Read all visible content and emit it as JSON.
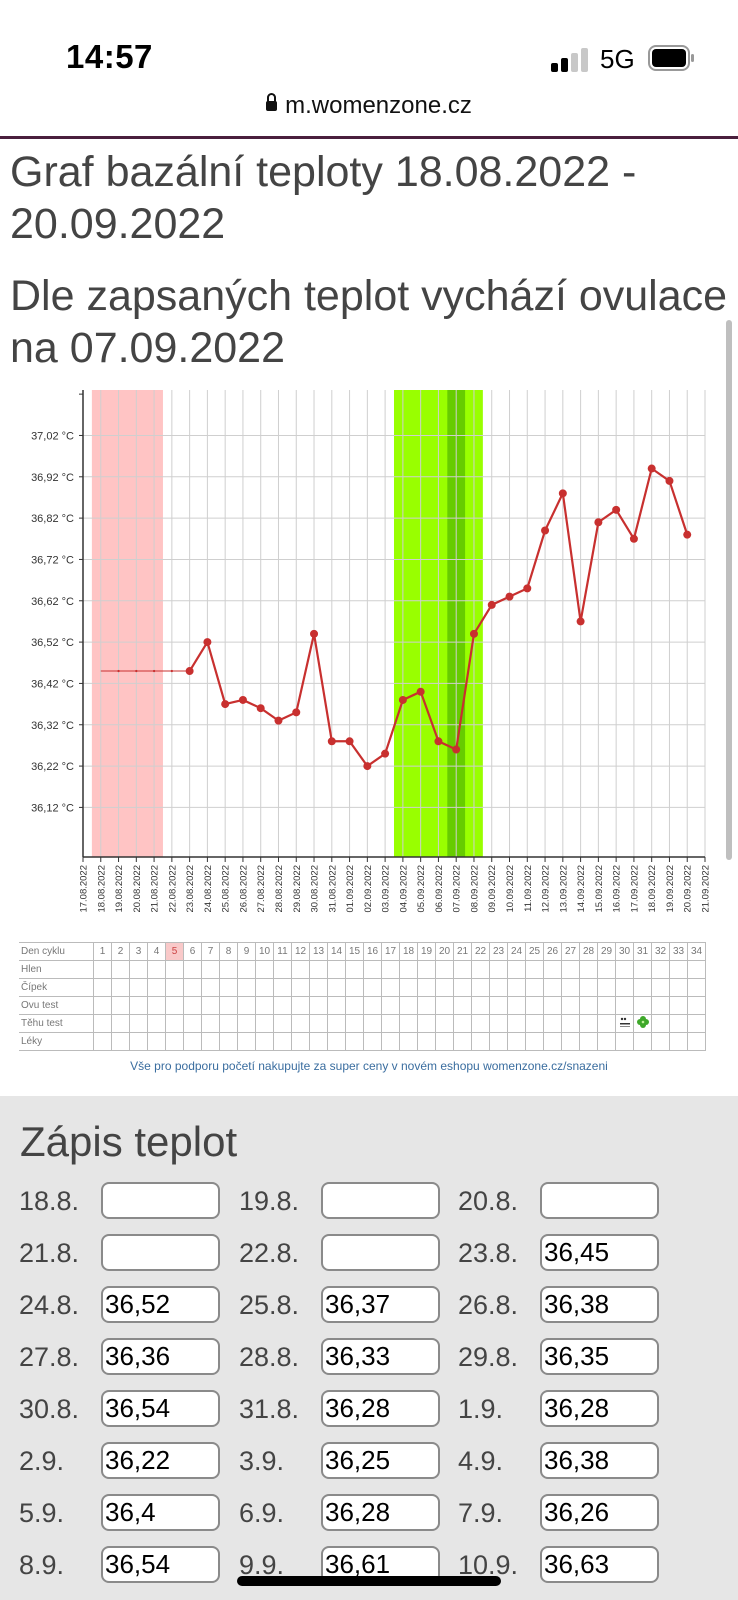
{
  "status": {
    "time": "14:57",
    "network": "5G"
  },
  "browser": {
    "url": "m.womenzone.cz"
  },
  "page": {
    "title": "Graf bazální teploty 18.08.2022 - 20.09.2022",
    "ovulation_text": "Dle zapsaných teplot vychází ovulace na 07.09.2022"
  },
  "chart_data": {
    "type": "line",
    "x": [
      "17.08.2022",
      "18.08.2022",
      "19.08.2022",
      "20.08.2022",
      "21.08.2022",
      "22.08.2022",
      "23.08.2022",
      "24.08.2022",
      "25.08.2022",
      "26.08.2022",
      "27.08.2022",
      "28.08.2022",
      "29.08.2022",
      "30.08.2022",
      "31.08.2022",
      "01.09.2022",
      "02.09.2022",
      "03.09.2022",
      "04.09.2022",
      "05.09.2022",
      "06.09.2022",
      "07.09.2022",
      "08.09.2022",
      "09.09.2022",
      "10.09.2022",
      "11.09.2022",
      "12.09.2022",
      "13.09.2022",
      "14.09.2022",
      "15.09.2022",
      "16.09.2022",
      "17.09.2022",
      "18.09.2022",
      "19.09.2022",
      "20.09.2022",
      "21.09.2022"
    ],
    "series": [
      {
        "values": [
          null,
          null,
          null,
          null,
          null,
          null,
          36.45,
          36.52,
          36.37,
          36.38,
          36.36,
          36.33,
          36.35,
          36.54,
          36.28,
          36.28,
          36.22,
          36.25,
          36.38,
          36.4,
          36.28,
          36.26,
          36.54,
          36.61,
          36.63,
          36.65,
          36.79,
          36.88,
          36.57,
          36.81,
          36.84,
          36.77,
          36.94,
          36.91,
          36.78,
          null
        ]
      }
    ],
    "interpolated": {
      "from_index": 1,
      "to_index": 6,
      "value": 36.45
    },
    "y_ticks": [
      "37,02 °C",
      "36,92 °C",
      "36,82 °C",
      "36,72 °C",
      "36,62 °C",
      "36,52 °C",
      "36,42 °C",
      "36,32 °C",
      "36,22 °C",
      "36,12 °C"
    ],
    "y_tick_values": [
      37.02,
      36.92,
      36.82,
      36.72,
      36.62,
      36.52,
      36.42,
      36.32,
      36.22,
      36.12
    ],
    "ylim": [
      36.0,
      37.13
    ],
    "bands": [
      {
        "from_index": 0.5,
        "to_index": 4.5,
        "color": "#ffc4c4"
      },
      {
        "from_index": 17.5,
        "to_index": 22.5,
        "color": "#99ff00"
      },
      {
        "from_index": 20.5,
        "to_index": 21.5,
        "color": "#66cc00"
      }
    ],
    "line_color": "#c8302f",
    "grid": true
  },
  "cycle_table": {
    "rows": [
      {
        "label": "Den cyklu",
        "cells": [
          "1",
          "2",
          "3",
          "4",
          "5",
          "6",
          "7",
          "8",
          "9",
          "10",
          "11",
          "12",
          "13",
          "14",
          "15",
          "16",
          "17",
          "18",
          "19",
          "20",
          "21",
          "22",
          "23",
          "24",
          "25",
          "26",
          "27",
          "28",
          "29",
          "30",
          "31",
          "32",
          "33",
          "34"
        ]
      },
      {
        "label": "Hlen",
        "cells": []
      },
      {
        "label": "Čípek",
        "cells": []
      },
      {
        "label": "Ovu test",
        "cells": []
      },
      {
        "label": "Těhu test",
        "cells": []
      },
      {
        "label": "Léky",
        "cells": []
      }
    ],
    "highlight_day": "5",
    "test_icons": [
      "test-strip-icon",
      "clover-icon"
    ]
  },
  "promo": "Vše pro podporu početí nakupujte za super ceny v novém eshopu womenzone.cz/snazeni",
  "entries": {
    "title": "Zápis teplot",
    "rows": [
      [
        {
          "date": "18.8.",
          "value": ""
        },
        {
          "date": "19.8.",
          "value": ""
        },
        {
          "date": "20.8.",
          "value": ""
        }
      ],
      [
        {
          "date": "21.8.",
          "value": ""
        },
        {
          "date": "22.8.",
          "value": ""
        },
        {
          "date": "23.8.",
          "value": "36,45"
        }
      ],
      [
        {
          "date": "24.8.",
          "value": "36,52"
        },
        {
          "date": "25.8.",
          "value": "36,37"
        },
        {
          "date": "26.8.",
          "value": "36,38"
        }
      ],
      [
        {
          "date": "27.8.",
          "value": "36,36"
        },
        {
          "date": "28.8.",
          "value": "36,33"
        },
        {
          "date": "29.8.",
          "value": "36,35"
        }
      ],
      [
        {
          "date": "30.8.",
          "value": "36,54"
        },
        {
          "date": "31.8.",
          "value": "36,28"
        },
        {
          "date": "1.9.",
          "value": "36,28"
        }
      ],
      [
        {
          "date": "2.9.",
          "value": "36,22"
        },
        {
          "date": "3.9.",
          "value": "36,25"
        },
        {
          "date": "4.9.",
          "value": "36,38"
        }
      ],
      [
        {
          "date": "5.9.",
          "value": "36,4"
        },
        {
          "date": "6.9.",
          "value": "36,28"
        },
        {
          "date": "7.9.",
          "value": "36,26"
        }
      ],
      [
        {
          "date": "8.9.",
          "value": "36,54"
        },
        {
          "date": "9.9.",
          "value": "36,61"
        },
        {
          "date": "10.9.",
          "value": "36,63"
        }
      ]
    ]
  }
}
